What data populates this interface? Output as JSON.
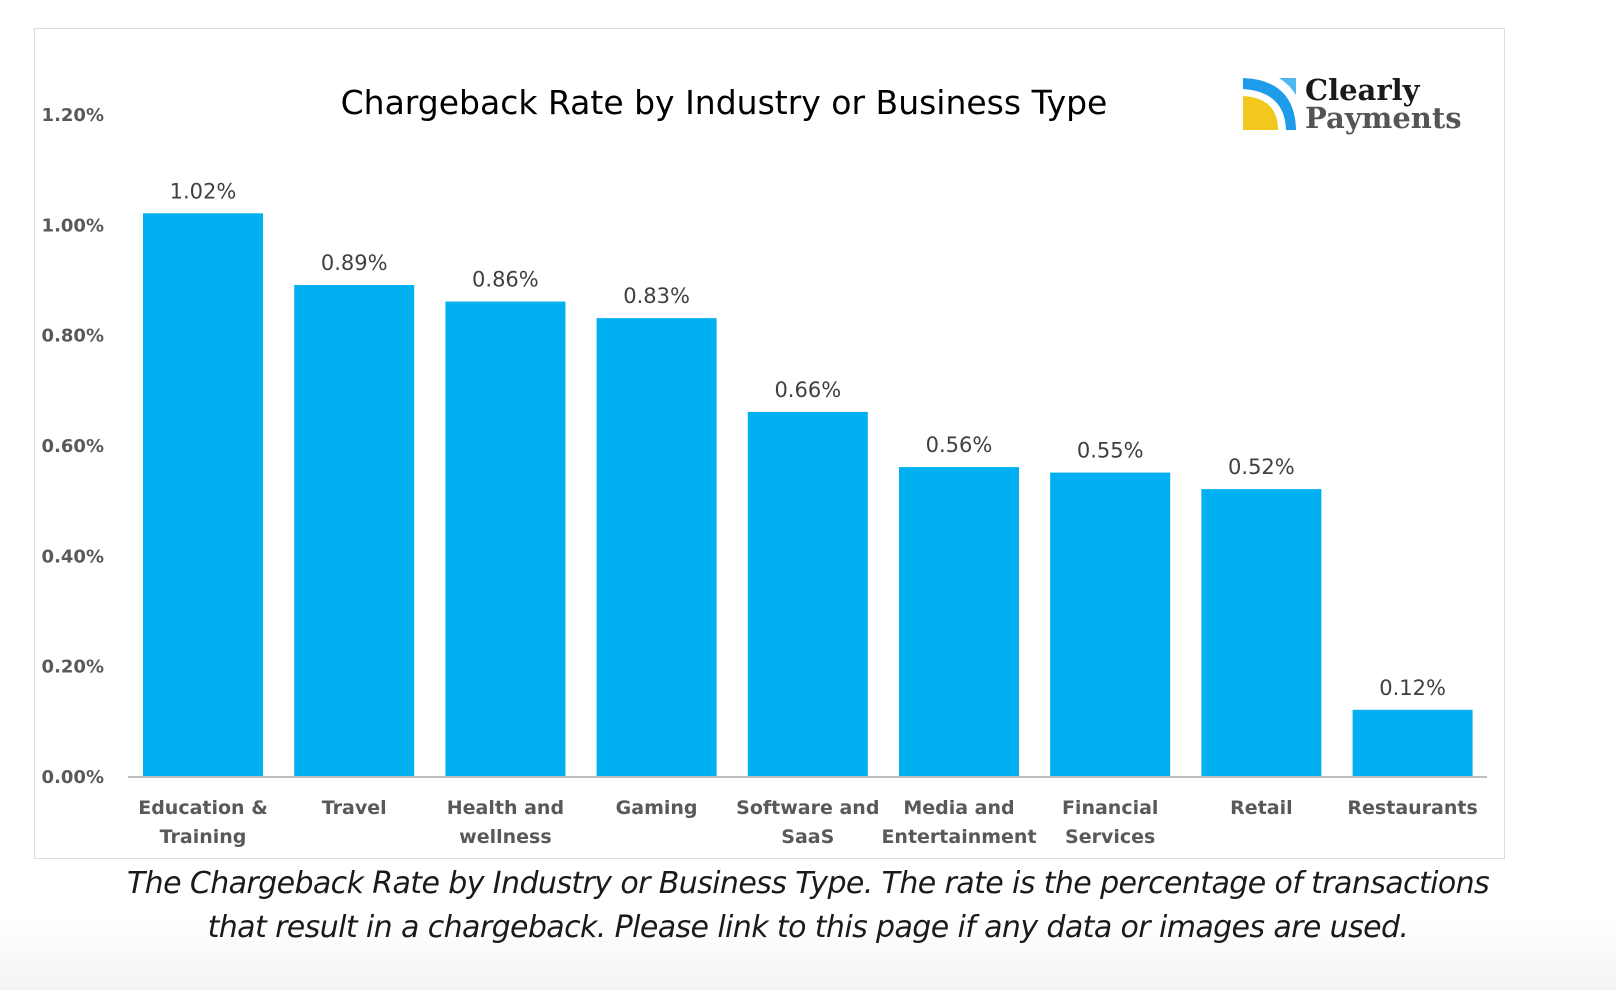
{
  "chart_data": {
    "type": "bar",
    "title": "Chargeback Rate by Industry or Business Type",
    "xlabel": "",
    "ylabel": "",
    "categories": [
      [
        "Education &",
        "Training"
      ],
      [
        "Travel"
      ],
      [
        "Health and",
        "wellness"
      ],
      [
        "Gaming"
      ],
      [
        "Software and",
        "SaaS"
      ],
      [
        "Media and",
        "Entertainment"
      ],
      [
        "Financial",
        "Services"
      ],
      [
        "Retail"
      ],
      [
        "Restaurants"
      ]
    ],
    "values": [
      1.02,
      0.89,
      0.86,
      0.83,
      0.66,
      0.56,
      0.55,
      0.52,
      0.12
    ],
    "data_labels": [
      "1.02%",
      "0.89%",
      "0.86%",
      "0.83%",
      "0.66%",
      "0.56%",
      "0.55%",
      "0.52%",
      "0.12%"
    ],
    "unit": "%",
    "ylim": [
      0,
      1.2
    ],
    "yticks": [
      0,
      0.2,
      0.4,
      0.6,
      0.8,
      1.0,
      1.2
    ],
    "ytick_labels": [
      "0.00%",
      "0.20%",
      "0.40%",
      "0.60%",
      "0.80%",
      "1.00%",
      "1.20%"
    ],
    "grid": false,
    "legend": "none",
    "bar_color": "#00B0F0"
  },
  "logo": {
    "line1": "Clearly",
    "line2": "Payments",
    "icon": "clearly-payments-logo-icon",
    "colors": {
      "blue": "#1E9BEA",
      "yellow": "#F2C81E",
      "light_blue": "#4FB8EE"
    }
  },
  "caption": {
    "line1": "The Chargeback Rate by Industry or Business Type. The rate is the percentage of transactions",
    "line2": "that result in a chargeback. Please link to this page if any data or images are used."
  }
}
